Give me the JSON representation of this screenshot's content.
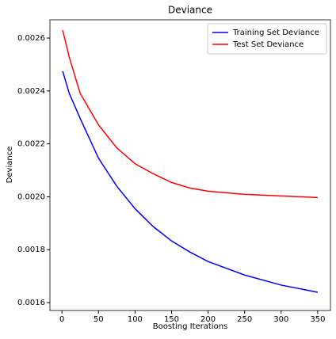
{
  "chart_data": {
    "type": "line",
    "title": "Deviance",
    "x_label": "Boosting Iterations",
    "y_label": "Deviance",
    "x": [
      1,
      10,
      25,
      50,
      75,
      100,
      125,
      150,
      175,
      200,
      250,
      300,
      350
    ],
    "series": [
      {
        "name": "Training Set Deviance",
        "color": "#0000ff",
        "values": [
          0.002475,
          0.002391,
          0.002296,
          0.002146,
          0.00204,
          0.001955,
          0.001887,
          0.001833,
          0.001791,
          0.001755,
          0.001704,
          0.001666,
          0.001639
        ]
      },
      {
        "name": "Test Set Deviance",
        "color": "#ff0000",
        "values": [
          0.00263,
          0.002528,
          0.002391,
          0.002272,
          0.002185,
          0.002125,
          0.002087,
          0.002054,
          0.002033,
          0.002021,
          0.002009,
          0.002003,
          0.001997
        ]
      }
    ],
    "xlim": [
      -16.45,
      367.45
    ],
    "ylim": [
      0.00157,
      0.002669
    ],
    "xticks": [
      0,
      50,
      100,
      150,
      200,
      250,
      300,
      350
    ],
    "yticks": [
      0.0016,
      0.0018,
      {
        "value": 0.002,
        "label": "0.0020"
      },
      0.0022,
      0.0024,
      0.0026
    ],
    "legend": "upper right"
  }
}
